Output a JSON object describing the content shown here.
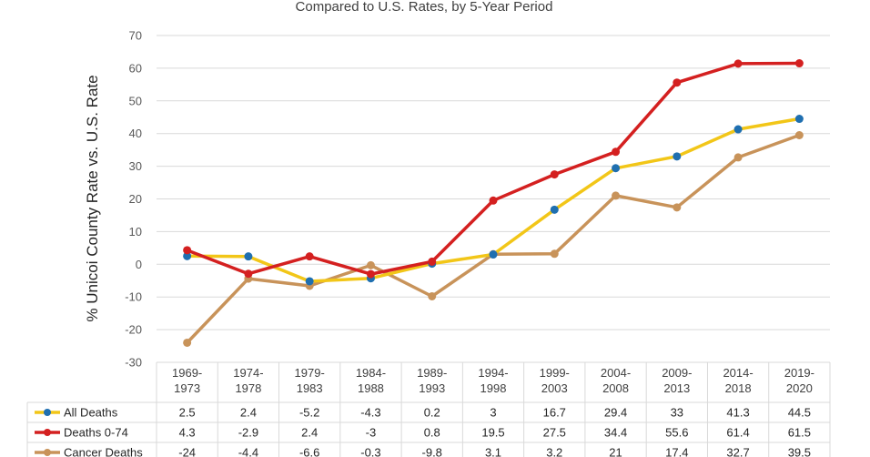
{
  "chart_data": {
    "type": "line",
    "title": "Compared to U.S. Rates, by 5-Year Period",
    "ylabel": "% Unicoi County Rate vs. U.S. Rate",
    "ylim": [
      -30,
      70
    ],
    "yticks": [
      70,
      60,
      50,
      40,
      30,
      20,
      10,
      0,
      -10,
      -20,
      -30
    ],
    "grid": true,
    "legend": "data-table",
    "categories": [
      [
        "1969-",
        "1973"
      ],
      [
        "1974-",
        "1978"
      ],
      [
        "1979-",
        "1983"
      ],
      [
        "1984-",
        "1988"
      ],
      [
        "1989-",
        "1993"
      ],
      [
        "1994-",
        "1998"
      ],
      [
        "1999-",
        "2003"
      ],
      [
        "2004-",
        "2008"
      ],
      [
        "2009-",
        "2013"
      ],
      [
        "2014-",
        "2018"
      ],
      [
        "2019-",
        "2020"
      ]
    ],
    "series": [
      {
        "name": "All Deaths",
        "line_color": "#f2c618",
        "marker_color": "#1f6fb0",
        "values": [
          2.5,
          2.4,
          -5.2,
          -4.3,
          0.2,
          3,
          16.7,
          29.4,
          33,
          41.3,
          44.5
        ],
        "labels": [
          "2.5",
          "2.4",
          "-5.2",
          "-4.3",
          "0.2",
          "3",
          "16.7",
          "29.4",
          "33",
          "41.3",
          "44.5"
        ]
      },
      {
        "name": "Deaths 0-74",
        "line_color": "#d42020",
        "marker_color": "#d42020",
        "values": [
          4.3,
          -2.9,
          2.4,
          -3,
          0.8,
          19.5,
          27.5,
          34.4,
          55.6,
          61.4,
          61.5
        ],
        "labels": [
          "4.3",
          "-2.9",
          "2.4",
          "-3",
          "0.8",
          "19.5",
          "27.5",
          "34.4",
          "55.6",
          "61.4",
          "61.5"
        ]
      },
      {
        "name": "Cancer Deaths",
        "line_color": "#c8935a",
        "marker_color": "#c8935a",
        "values": [
          -24,
          -4.4,
          -6.6,
          -0.3,
          -9.8,
          3.1,
          3.2,
          21,
          17.4,
          32.7,
          39.5
        ],
        "labels": [
          "-24",
          "-4.4",
          "-6.6",
          "-0.3",
          "-9.8",
          "3.1",
          "3.2",
          "21",
          "17.4",
          "32.7",
          "39.5"
        ]
      }
    ]
  }
}
